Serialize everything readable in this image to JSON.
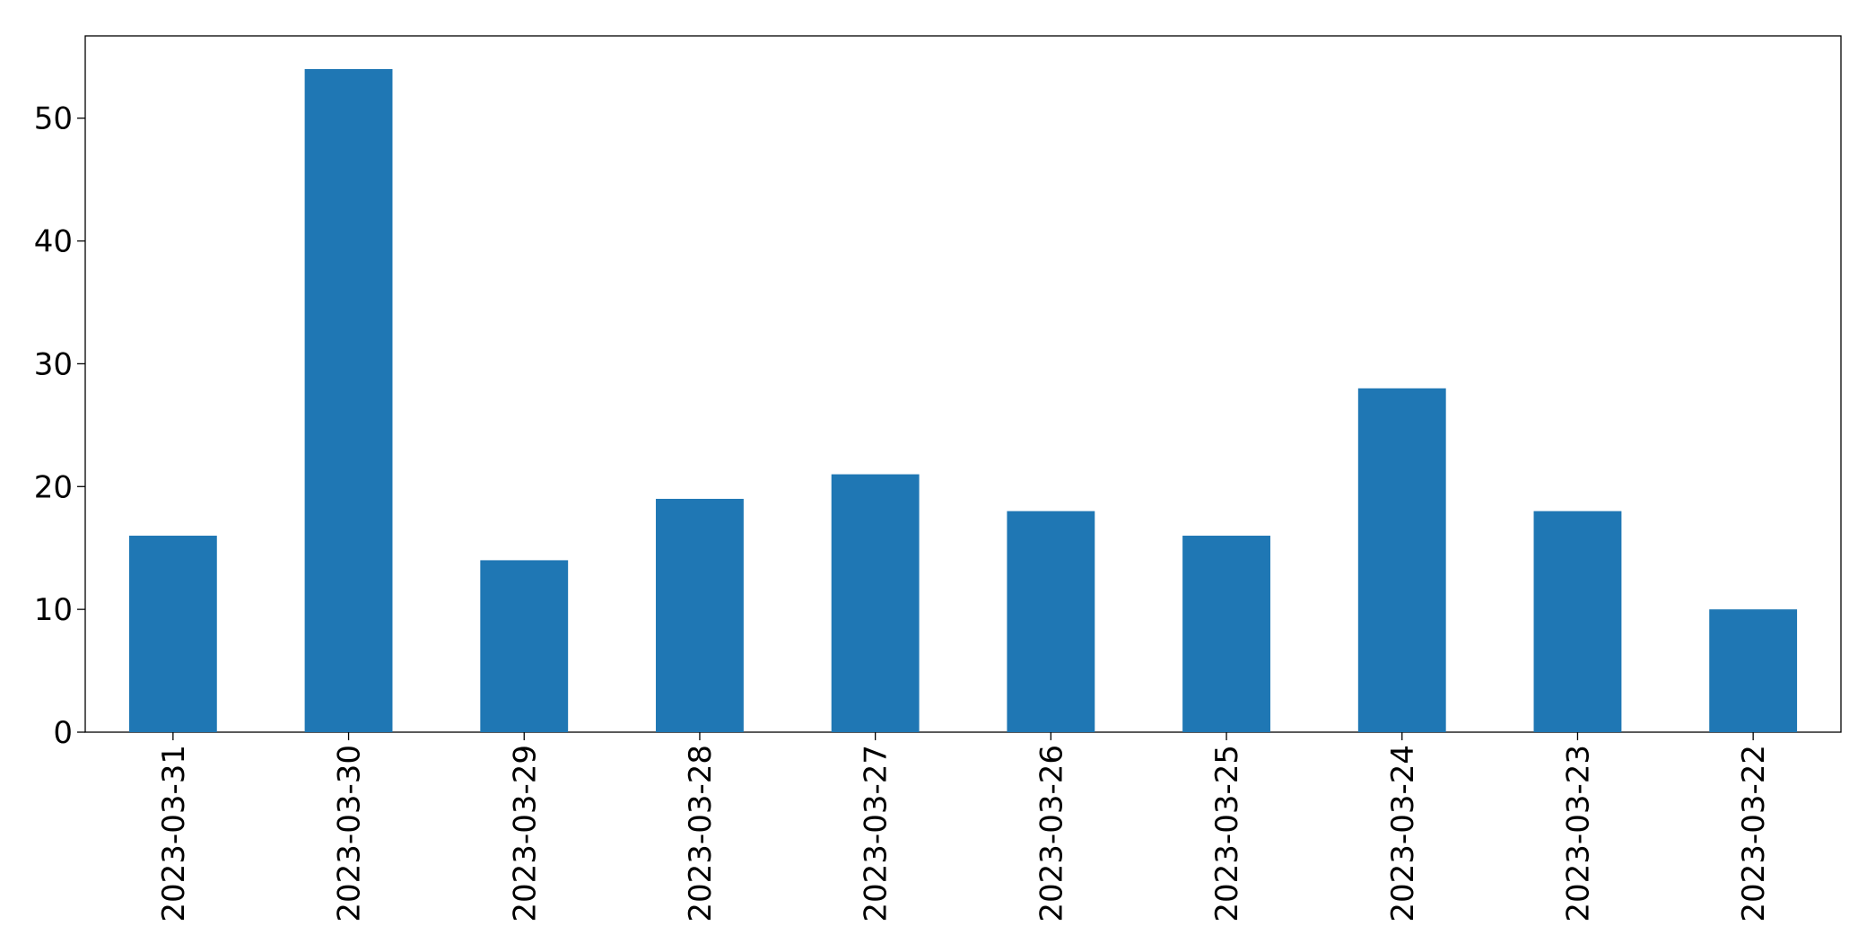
{
  "chart_data": {
    "type": "bar",
    "categories": [
      "2023-03-31",
      "2023-03-30",
      "2023-03-29",
      "2023-03-28",
      "2023-03-27",
      "2023-03-26",
      "2023-03-25",
      "2023-03-24",
      "2023-03-23",
      "2023-03-22"
    ],
    "values": [
      16,
      54,
      14,
      19,
      21,
      18,
      16,
      28,
      18,
      10
    ],
    "color": "#1f77b4",
    "ylim": [
      0,
      56.7
    ],
    "yticks": [
      0,
      10,
      20,
      30,
      40,
      50
    ],
    "grid": false
  }
}
